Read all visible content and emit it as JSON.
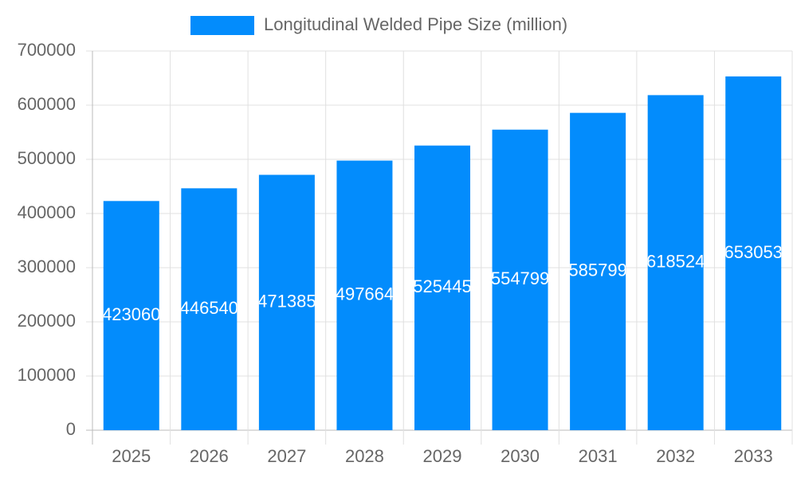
{
  "chart_data": {
    "type": "bar",
    "categories": [
      "2025",
      "2026",
      "2027",
      "2028",
      "2029",
      "2030",
      "2031",
      "2032",
      "2033"
    ],
    "series": [
      {
        "name": "Longitudinal Welded Pipe Size (million)",
        "color": "#038cfc",
        "values": [
          423060,
          446540,
          471385,
          497664,
          525445,
          554799,
          585799,
          618524,
          653053
        ]
      }
    ],
    "ylim": [
      0,
      700000
    ],
    "yticks": [
      0,
      100000,
      200000,
      300000,
      400000,
      500000,
      600000,
      700000
    ],
    "grid": true,
    "legend": "top",
    "data_labels": true
  }
}
